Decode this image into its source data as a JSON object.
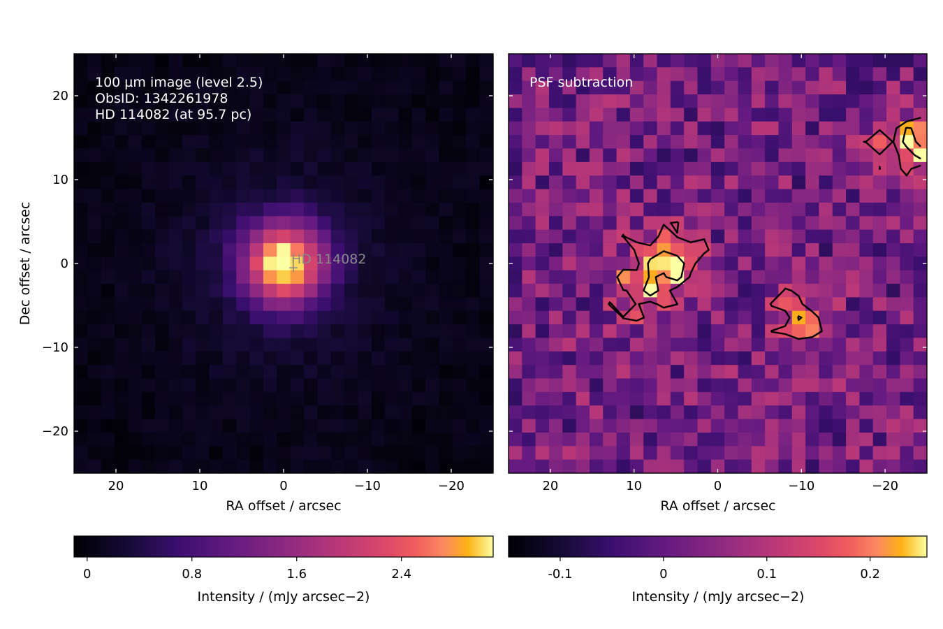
{
  "chart_data": [
    {
      "type": "heatmap",
      "panel": "left",
      "annotation_lines": [
        "100 µm image (level 2.5)",
        "ObsID: 1342261978",
        "HD 114082 (at 95.7 pc)"
      ],
      "star_label": "HD 114082",
      "xlabel": "RA offset / arcsec",
      "ylabel": "Dec offset / arcsec",
      "xlim": [
        25,
        -25
      ],
      "ylim": [
        -25,
        25
      ],
      "x_ticks": [
        20,
        10,
        0,
        -10,
        -20
      ],
      "y_ticks": [
        20,
        10,
        0,
        -10,
        -20
      ],
      "x_tick_labels": [
        "20",
        "10",
        "0",
        "−10",
        "−20"
      ],
      "y_tick_labels": [
        "20",
        "10",
        "0",
        "−10",
        "−20"
      ],
      "colormap": "inferno",
      "source": {
        "ra": 0,
        "dec": 0,
        "peak_intensity": 2.9,
        "sigma_arcsec": 3.4
      },
      "background_intensity": 0.05,
      "colorbar": {
        "label": "Intensity / (mJy arcsec−2)",
        "range": [
          -0.1,
          3.1
        ],
        "ticks": [
          0,
          0.8,
          1.6,
          2.4
        ],
        "tick_labels": [
          "0",
          "0.8",
          "1.6",
          "2.4"
        ]
      }
    },
    {
      "type": "heatmap",
      "panel": "right",
      "annotation_lines": [
        "PSF subtraction"
      ],
      "xlabel": "RA offset / arcsec",
      "xlim": [
        25,
        -25
      ],
      "ylim": [
        -25,
        25
      ],
      "x_ticks": [
        20,
        10,
        0,
        -10,
        -20
      ],
      "x_tick_labels": [
        "20",
        "10",
        "0",
        "−10",
        "−20"
      ],
      "colormap": "inferno",
      "features": [
        {
          "ra": 6,
          "dec": 0,
          "intensity": 0.2
        },
        {
          "ra": 9,
          "dec": -3,
          "intensity": 0.15
        },
        {
          "ra": -23,
          "dec": 14,
          "intensity": 0.2
        },
        {
          "ra": -10,
          "dec": -7,
          "intensity": 0.14
        }
      ],
      "contours": {
        "levels": [
          0.12,
          0.22
        ],
        "color": "#000000"
      },
      "colorbar": {
        "label": "Intensity / (mJy arcsec−2)",
        "range": [
          -0.15,
          0.255
        ],
        "ticks": [
          -0.1,
          0,
          0.1,
          0.2
        ],
        "tick_labels": [
          "-0.1",
          "0",
          "0.1",
          "0.2"
        ]
      }
    }
  ]
}
